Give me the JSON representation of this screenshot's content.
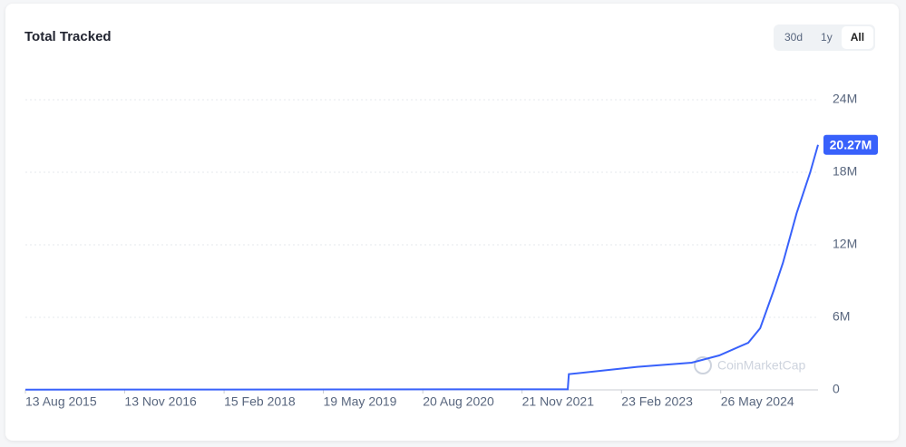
{
  "chart_data": {
    "type": "line",
    "title": "Total Tracked",
    "x": [
      "2015-08-13",
      "2022-06-20",
      "2022-06-25",
      "2023-05-07",
      "2024-01-13",
      "2024-05-19",
      "2024-09-30",
      "2024-11-24",
      "2025-01-26",
      "2025-03-09",
      "2025-05-11",
      "2025-07-13",
      "2025-08-18"
    ],
    "series": [
      {
        "name": "Total Tracked",
        "color": "#3861fb",
        "values": [
          20000,
          50000,
          1300000,
          1900000,
          2250000,
          2850000,
          3900000,
          5100000,
          8250000,
          10500000,
          14600000,
          18000000,
          20270000
        ],
        "value_labels": [
          null,
          null,
          null,
          null,
          null,
          null,
          null,
          null,
          null,
          null,
          null,
          null,
          "20.27M"
        ]
      }
    ],
    "xlim": [
      "2015-08-13",
      "2025-08-18"
    ],
    "xticks": [
      {
        "value": "2015-08-13",
        "label": "13 Aug 2015"
      },
      {
        "value": "2016-11-13",
        "label": "13 Nov 2016"
      },
      {
        "value": "2018-02-15",
        "label": "15 Feb 2018"
      },
      {
        "value": "2019-05-19",
        "label": "19 May 2019"
      },
      {
        "value": "2020-08-20",
        "label": "20 Aug 2020"
      },
      {
        "value": "2021-11-21",
        "label": "21 Nov 2021"
      },
      {
        "value": "2023-02-23",
        "label": "23 Feb 2023"
      },
      {
        "value": "2024-05-26",
        "label": "26 May 2024"
      }
    ],
    "ylim": [
      0,
      24000000
    ],
    "yticks": [
      0,
      {
        "value": 6000000,
        "label": "6M"
      },
      {
        "value": 12000000,
        "label": "12M"
      },
      {
        "value": 18000000,
        "label": "18M"
      },
      {
        "value": 24000000,
        "label": "24M"
      }
    ],
    "grid": true
  },
  "controls": [
    "30d",
    "1y",
    "All"
  ],
  "watermark": "CoinMarketCap"
}
